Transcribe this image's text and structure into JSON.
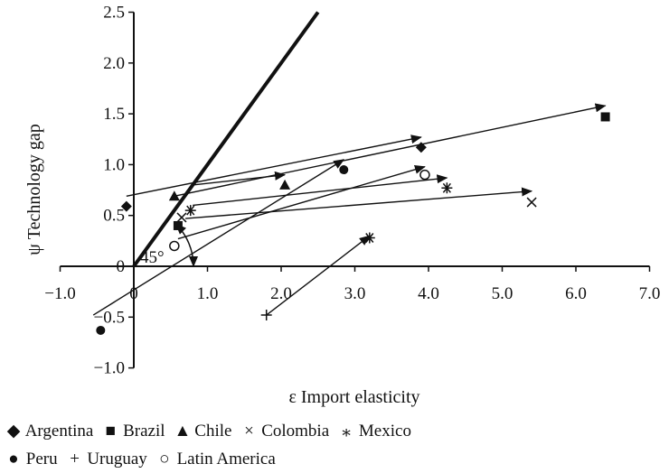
{
  "chart_data": {
    "type": "scatter",
    "xlabel": "ε Import elasticity",
    "ylabel": "ψ Technology gap",
    "xlim": [
      -1.0,
      7.0
    ],
    "ylim": [
      -1.0,
      2.5
    ],
    "x_ticks": [
      "−1.0",
      "0",
      "1.0",
      "2.0",
      "3.0",
      "4.0",
      "5.0",
      "6.0",
      "7.0"
    ],
    "y_ticks": [
      "−1.0",
      "−0.5",
      "0",
      "0.5",
      "1.0",
      "1.5",
      "2.0",
      "2.5"
    ],
    "angle_label": "45°",
    "reference_line": {
      "from": [
        0,
        0
      ],
      "to": [
        2.5,
        2.5
      ]
    },
    "series": [
      {
        "name": "Argentina",
        "marker": "◆",
        "points": [
          [
            -0.1,
            0.59
          ],
          [
            3.9,
            1.17
          ]
        ]
      },
      {
        "name": "Brazil",
        "marker": "■",
        "points": [
          [
            0.6,
            0.4
          ],
          [
            6.4,
            1.47
          ]
        ]
      },
      {
        "name": "Chile",
        "marker": "▲",
        "points": [
          [
            0.55,
            0.69
          ],
          [
            2.05,
            0.8
          ]
        ]
      },
      {
        "name": "Colombia",
        "marker": "×",
        "points": [
          [
            0.65,
            0.48
          ],
          [
            5.4,
            0.63
          ]
        ]
      },
      {
        "name": "Mexico",
        "marker": "⁎",
        "points": [
          [
            0.77,
            0.55
          ],
          [
            4.25,
            0.77
          ],
          [
            3.2,
            0.28
          ]
        ]
      },
      {
        "name": "Peru",
        "marker": "●",
        "points": [
          [
            -0.45,
            -0.63
          ],
          [
            2.85,
            0.95
          ]
        ]
      },
      {
        "name": "Uruguay",
        "marker": "+",
        "points": [
          [
            1.8,
            -0.48
          ]
        ]
      },
      {
        "name": "Latin America",
        "marker": "○",
        "points": [
          [
            0.55,
            0.2
          ],
          [
            3.95,
            0.9
          ]
        ]
      }
    ],
    "arrows": [
      {
        "from": [
          -0.1,
          0.69
        ],
        "to": [
          3.9,
          1.27
        ]
      },
      {
        "from": [
          0.55,
          0.69
        ],
        "to": [
          6.4,
          1.58
        ]
      },
      {
        "from": [
          0.8,
          0.8
        ],
        "to": [
          2.05,
          0.9
        ]
      },
      {
        "from": [
          0.7,
          0.47
        ],
        "to": [
          5.4,
          0.74
        ]
      },
      {
        "from": [
          0.8,
          0.6
        ],
        "to": [
          4.25,
          0.87
        ]
      },
      {
        "from": [
          -0.55,
          -0.48
        ],
        "to": [
          2.85,
          1.05
        ]
      },
      {
        "from": [
          1.8,
          -0.48
        ],
        "to": [
          3.2,
          0.3
        ]
      },
      {
        "from": [
          0.6,
          0.27
        ],
        "to": [
          3.95,
          0.98
        ]
      }
    ]
  },
  "legend": {
    "row1": [
      {
        "marker": "◆",
        "label": "Argentina"
      },
      {
        "marker": "■",
        "label": "Brazil"
      },
      {
        "marker": "▲",
        "label": "Chile"
      },
      {
        "marker": "×",
        "label": "Colombia"
      },
      {
        "marker": "⁎",
        "label": "Mexico"
      }
    ],
    "row2": [
      {
        "marker": "●",
        "label": "Peru"
      },
      {
        "marker": "+",
        "label": "Uruguay"
      },
      {
        "marker": "○",
        "label": "Latin America"
      }
    ]
  }
}
